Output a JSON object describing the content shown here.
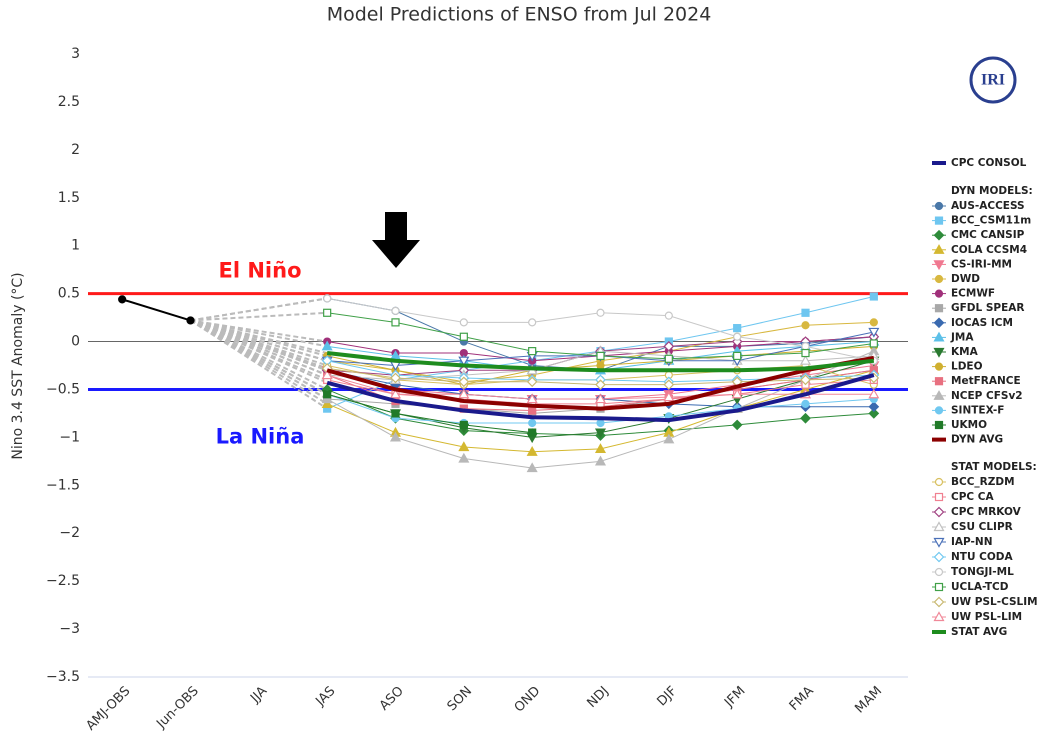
{
  "chart_data": {
    "type": "line",
    "title": "Model Predictions of ENSO from Jul 2024",
    "y_label": "Nino 3.4 SST Anomaly (°C)",
    "logo": "IRI",
    "categories": [
      "AMJ-OBS",
      "Jun-OBS",
      "JJA",
      "JAS",
      "ASO",
      "SON",
      "OND",
      "NDJ",
      "DJF",
      "JFM",
      "FMA",
      "MAM"
    ],
    "ylim": [
      -3.5,
      3
    ],
    "yticks": [
      3,
      2.5,
      2,
      1.5,
      1,
      0.5,
      0,
      {
        "value": -0.5,
        "label": "−0.5"
      },
      {
        "value": -1,
        "label": "−1"
      },
      {
        "value": -1.5,
        "label": "−1.5"
      },
      {
        "value": -2,
        "label": "−2"
      },
      {
        "value": -2.5,
        "label": "−2.5"
      },
      {
        "value": -3,
        "label": "−3"
      },
      {
        "value": -3.5,
        "label": "−3.5"
      }
    ],
    "zero_line": true,
    "thresholds": [
      {
        "value": 0.5,
        "label": "El Niño",
        "color": "#ff1a1a"
      },
      {
        "value": -0.5,
        "label": "La Niña",
        "color": "#1a1aff"
      }
    ],
    "observed": {
      "color": "#000000",
      "values": [
        0.44,
        0.22,
        null,
        null,
        null,
        null,
        null,
        null,
        null,
        null,
        null,
        null
      ]
    },
    "legend_headers": [
      "DYN MODELS:",
      "STAT MODELS:"
    ],
    "series": [
      {
        "name": "CPC CONSOL",
        "color": "#1a1a8c",
        "marker": "none",
        "width": 4,
        "values": [
          null,
          null,
          null,
          -0.43,
          -0.62,
          -0.72,
          -0.79,
          -0.8,
          -0.82,
          -0.72,
          -0.55,
          -0.35
        ]
      },
      {
        "name": "AUS-ACCESS",
        "color": "#4a78a8",
        "marker": "circle",
        "filled": true,
        "values": [
          null,
          null,
          null,
          0.45,
          0.32,
          0.0,
          -0.25,
          -0.3,
          -0.05,
          -0.05,
          -0.02,
          0.05
        ]
      },
      {
        "name": "BCC_CSM11m",
        "color": "#6ec6f0",
        "marker": "square",
        "filled": true,
        "values": [
          null,
          null,
          null,
          -0.7,
          -0.4,
          -0.3,
          -0.2,
          -0.1,
          0.0,
          0.14,
          0.3,
          0.47
        ]
      },
      {
        "name": "CMC CANSIP",
        "color": "#2e8b3a",
        "marker": "diamond",
        "filled": true,
        "values": [
          null,
          null,
          null,
          -0.5,
          -0.8,
          -0.93,
          -0.96,
          -0.98,
          -0.93,
          -0.87,
          -0.8,
          -0.75
        ]
      },
      {
        "name": "COLA CCSM4",
        "color": "#d4b830",
        "marker": "triangle",
        "filled": true,
        "values": [
          null,
          null,
          null,
          -0.65,
          -0.95,
          -1.1,
          -1.15,
          -1.12,
          -0.95,
          -0.7,
          -0.5,
          -0.3
        ]
      },
      {
        "name": "CS-IRI-MM",
        "color": "#f07890",
        "marker": "triangle-down",
        "filled": true,
        "values": [
          null,
          null,
          null,
          -0.3,
          -0.5,
          -0.55,
          -0.6,
          -0.6,
          -0.55,
          -0.45,
          -0.35,
          -0.25
        ]
      },
      {
        "name": "DWD",
        "color": "#d8b840",
        "marker": "circle",
        "filled": true,
        "values": [
          null,
          null,
          null,
          -0.2,
          -0.3,
          -0.42,
          -0.35,
          -0.2,
          -0.1,
          0.05,
          0.17,
          0.2
        ]
      },
      {
        "name": "ECMWF",
        "color": "#a0307a",
        "marker": "circle",
        "filled": true,
        "values": [
          null,
          null,
          null,
          0.0,
          -0.12,
          -0.12,
          -0.2,
          -0.15,
          -0.1,
          -0.05,
          0.0,
          0.05
        ]
      },
      {
        "name": "GFDL SPEAR",
        "color": "#a8a8a8",
        "marker": "square",
        "filled": true,
        "values": [
          null,
          null,
          null,
          -0.6,
          -0.65,
          -0.7,
          -0.75,
          -0.7,
          -0.6,
          -0.5,
          -0.4,
          -0.3
        ]
      },
      {
        "name": "IOCAS ICM",
        "color": "#3a6ab0",
        "marker": "diamond",
        "filled": true,
        "values": [
          null,
          null,
          null,
          -0.3,
          -0.45,
          -0.55,
          -0.6,
          -0.6,
          -0.65,
          -0.68,
          -0.68,
          -0.68
        ]
      },
      {
        "name": "JMA",
        "color": "#5cc0e8",
        "marker": "triangle",
        "filled": true,
        "values": [
          null,
          null,
          null,
          -0.05,
          -0.15,
          -0.2,
          -0.3,
          -0.3,
          -0.2,
          -0.1,
          -0.05,
          0.0
        ]
      },
      {
        "name": "KMA",
        "color": "#2a7a30",
        "marker": "triangle-down",
        "filled": true,
        "values": [
          null,
          null,
          null,
          -0.55,
          -0.75,
          -0.9,
          -1.0,
          -0.95,
          -0.8,
          -0.6,
          -0.4,
          -0.2
        ]
      },
      {
        "name": "LDEO",
        "color": "#d0b030",
        "marker": "circle",
        "filled": true,
        "values": [
          null,
          null,
          null,
          -0.15,
          -0.3,
          -0.45,
          -0.3,
          -0.25,
          -0.2,
          -0.15,
          -0.1,
          -0.05
        ]
      },
      {
        "name": "MetFRANCE",
        "color": "#e87080",
        "marker": "square",
        "filled": true,
        "values": [
          null,
          null,
          null,
          -0.35,
          -0.62,
          -0.7,
          -0.72,
          -0.68,
          -0.6,
          -0.5,
          -0.4,
          -0.3
        ]
      },
      {
        "name": "NCEP CFSv2",
        "color": "#b8b8b8",
        "marker": "triangle",
        "filled": true,
        "values": [
          null,
          null,
          null,
          -0.6,
          -1.0,
          -1.22,
          -1.32,
          -1.25,
          -1.02,
          -0.7,
          -0.4,
          -0.1
        ]
      },
      {
        "name": "SINTEX-F",
        "color": "#70c8f0",
        "marker": "circle",
        "filled": true,
        "values": [
          null,
          null,
          null,
          -0.55,
          -0.8,
          -0.85,
          -0.85,
          -0.85,
          -0.78,
          -0.7,
          -0.65,
          -0.6
        ]
      },
      {
        "name": "UKMO",
        "color": "#207a28",
        "marker": "square",
        "filled": true,
        "values": [
          null,
          null,
          null,
          -0.55,
          -0.75,
          -0.87,
          -0.95,
          null,
          null,
          null,
          null,
          null
        ]
      },
      {
        "name": "DYN AVG",
        "color": "#8b0000",
        "marker": "none",
        "width": 4,
        "values": [
          null,
          null,
          null,
          -0.3,
          -0.5,
          -0.62,
          -0.67,
          -0.7,
          -0.65,
          -0.47,
          -0.3,
          -0.17
        ]
      },
      {
        "name": "BCC_RZDM",
        "color": "#d8c060",
        "marker": "circle",
        "filled": false,
        "values": [
          null,
          null,
          null,
          -0.25,
          -0.4,
          -0.45,
          -0.4,
          -0.4,
          -0.35,
          -0.3,
          -0.25,
          -0.45
        ]
      },
      {
        "name": "CPC CA",
        "color": "#f08090",
        "marker": "square",
        "filled": false,
        "values": [
          null,
          null,
          null,
          -0.4,
          -0.55,
          -0.6,
          -0.65,
          -0.65,
          -0.6,
          -0.55,
          -0.45,
          -0.4
        ]
      },
      {
        "name": "CPC MRKOV",
        "color": "#a04080",
        "marker": "diamond",
        "filled": false,
        "values": [
          null,
          null,
          null,
          -0.3,
          -0.35,
          -0.3,
          -0.3,
          -0.1,
          -0.05,
          0.0,
          0.0,
          0.05
        ]
      },
      {
        "name": "CSU CLIPR",
        "color": "#c0c0c0",
        "marker": "triangle",
        "filled": false,
        "values": [
          null,
          null,
          null,
          -0.35,
          -0.4,
          -0.35,
          -0.3,
          -0.1,
          -0.15,
          -0.2,
          -0.2,
          -0.15
        ]
      },
      {
        "name": "IAP-NN",
        "color": "#4a70b8",
        "marker": "triangle-down",
        "filled": false,
        "values": [
          null,
          null,
          null,
          -0.2,
          -0.25,
          -0.2,
          -0.15,
          -0.15,
          -0.2,
          -0.2,
          -0.05,
          0.1
        ]
      },
      {
        "name": "NTU CODA",
        "color": "#70c8f0",
        "marker": "diamond",
        "filled": false,
        "values": [
          null,
          null,
          null,
          -0.2,
          -0.35,
          -0.38,
          -0.4,
          -0.4,
          -0.42,
          -0.4,
          -0.38,
          -0.35
        ]
      },
      {
        "name": "TONGJI-ML",
        "color": "#c8c8c8",
        "marker": "circle",
        "filled": false,
        "values": [
          null,
          null,
          null,
          0.45,
          0.32,
          0.2,
          0.2,
          0.3,
          0.27,
          0.05,
          -0.05,
          -0.2
        ]
      },
      {
        "name": "UCLA-TCD",
        "color": "#40a048",
        "marker": "square",
        "filled": false,
        "values": [
          null,
          null,
          null,
          0.3,
          0.2,
          0.05,
          -0.1,
          -0.15,
          -0.18,
          -0.15,
          -0.12,
          -0.02
        ]
      },
      {
        "name": "UW PSL-CSLIM",
        "color": "#c8b870",
        "marker": "diamond",
        "filled": false,
        "values": [
          null,
          null,
          null,
          -0.28,
          -0.38,
          -0.42,
          -0.42,
          -0.45,
          -0.45,
          -0.42,
          -0.4,
          -0.38
        ]
      },
      {
        "name": "UW PSL-LIM",
        "color": "#f08898",
        "marker": "triangle",
        "filled": false,
        "values": [
          null,
          null,
          null,
          -0.35,
          -0.55,
          -0.55,
          -0.6,
          -0.6,
          -0.58,
          -0.55,
          -0.55,
          -0.55
        ]
      },
      {
        "name": "STAT AVG",
        "color": "#1e8c1e",
        "marker": "none",
        "width": 4,
        "values": [
          null,
          null,
          null,
          -0.12,
          -0.2,
          -0.25,
          -0.28,
          -0.3,
          -0.3,
          -0.3,
          -0.28,
          -0.2
        ]
      }
    ]
  }
}
